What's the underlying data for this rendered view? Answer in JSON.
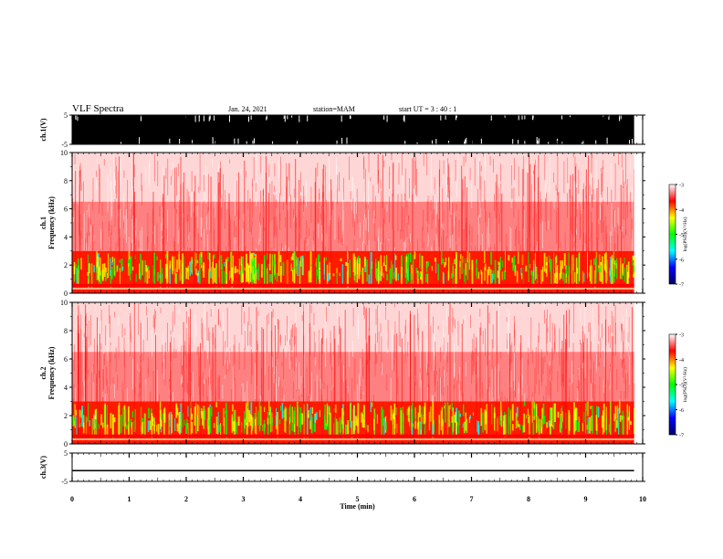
{
  "header": {
    "title": "VLF Spectra",
    "date": "Jan. 24, 2021",
    "station": "station=MAM",
    "start": "start UT =  3 : 40 : 1"
  },
  "colors": {
    "palette": [
      "#000066",
      "#0000ff",
      "#00ffff",
      "#00ff00",
      "#ffff00",
      "#ff0000",
      "#ffffff"
    ],
    "signal": "#000000"
  },
  "chart_data": [
    {
      "type": "line",
      "panel": "ch1-waveform",
      "ylabel": "ch.1(V)",
      "ylim": [
        -5,
        5
      ],
      "yticks": [
        "5",
        "-5"
      ],
      "xlim": [
        0,
        10
      ],
      "note_fill": "dense signal spanning -5 to 5 V from 0 to ~9.85 min",
      "signal_end_min": 9.85
    },
    {
      "type": "heatmap",
      "panel": "ch1-spectrogram",
      "ylabel": "ch.1\nFrequency (kHz)",
      "ylim": [
        0,
        10
      ],
      "yticks": [
        "0",
        "2",
        "4",
        "6",
        "8",
        "10"
      ],
      "xlim": [
        0,
        10
      ],
      "colorbar": {
        "label": "log(PSD)(V²/Hz)",
        "ticks": [
          "-3",
          "-4",
          "-5",
          "-6",
          "-7"
        ],
        "range": [
          -7,
          -3
        ]
      },
      "profile": {
        "band_top_khz": 3.0,
        "low_band_khz": 0.6
      }
    },
    {
      "type": "heatmap",
      "panel": "ch2-spectrogram",
      "ylabel": "ch.2\nFrequency (kHz)",
      "ylim": [
        0,
        10
      ],
      "yticks": [
        "0",
        "2",
        "4",
        "6",
        "8",
        "10"
      ],
      "xlim": [
        0,
        10
      ],
      "colorbar": {
        "label": "log(PSD)(V²/Hz)",
        "ticks": [
          "-3",
          "-4",
          "-5",
          "-6",
          "-7"
        ],
        "range": [
          -7,
          -3
        ]
      },
      "profile": {
        "band_top_khz": 3.0,
        "low_band_khz": 0.6
      }
    },
    {
      "type": "line",
      "panel": "ch3-waveform",
      "ylabel": "ch.3(V)",
      "ylim": [
        -5,
        5
      ],
      "yticks": [
        "5",
        "-5"
      ],
      "xlim": [
        0,
        10
      ],
      "value": -1.2,
      "signal_end_min": 9.85
    }
  ],
  "xaxis": {
    "label": "Time (min)",
    "ticks": [
      "0",
      "1",
      "2",
      "3",
      "4",
      "5",
      "6",
      "7",
      "8",
      "9",
      "10"
    ]
  }
}
